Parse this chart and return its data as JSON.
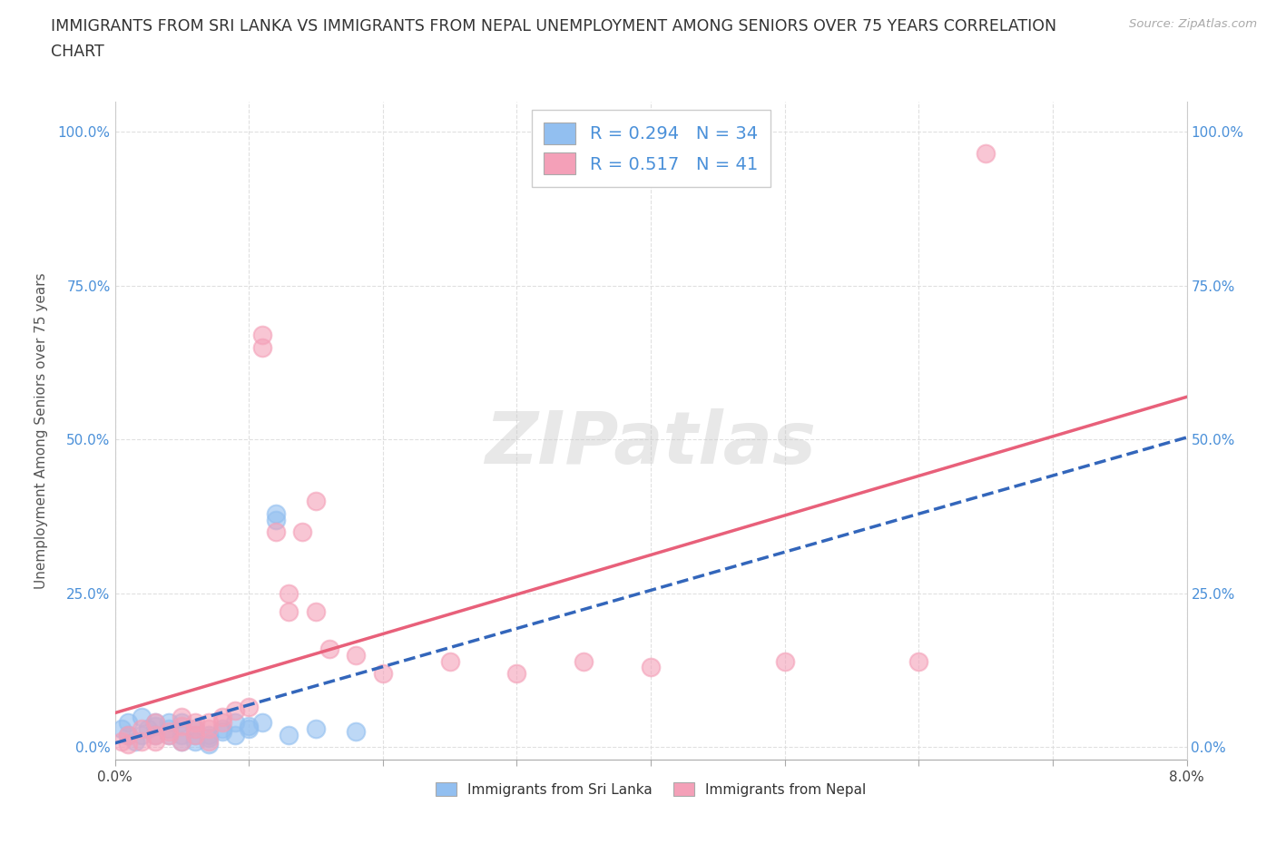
{
  "title_line1": "IMMIGRANTS FROM SRI LANKA VS IMMIGRANTS FROM NEPAL UNEMPLOYMENT AMONG SENIORS OVER 75 YEARS CORRELATION",
  "title_line2": "CHART",
  "source": "Source: ZipAtlas.com",
  "ylabel": "Unemployment Among Seniors over 75 years",
  "xlim": [
    0.0,
    0.08
  ],
  "ylim": [
    -0.02,
    1.05
  ],
  "xticks": [
    0.0,
    0.01,
    0.02,
    0.03,
    0.04,
    0.05,
    0.06,
    0.07,
    0.08
  ],
  "xtick_labels": [
    "0.0%",
    "",
    "",
    "",
    "",
    "",
    "",
    "",
    "8.0%"
  ],
  "yticks": [
    0.0,
    0.25,
    0.5,
    0.75,
    1.0
  ],
  "ytick_labels": [
    "0.0%",
    "25.0%",
    "50.0%",
    "75.0%",
    "100.0%"
  ],
  "sri_lanka_color": "#92bff0",
  "nepal_color": "#f4a0b8",
  "sri_lanka_line_color": "#3366bb",
  "nepal_line_color": "#e8607a",
  "sri_lanka_R": 0.294,
  "sri_lanka_N": 34,
  "nepal_R": 0.517,
  "nepal_N": 41,
  "watermark": "ZIPatlas",
  "background_color": "#ffffff",
  "grid_color": "#dddddd",
  "sri_lanka_scatter_x": [
    0.0005,
    0.001,
    0.001,
    0.0015,
    0.002,
    0.002,
    0.0025,
    0.003,
    0.003,
    0.003,
    0.004,
    0.004,
    0.004,
    0.005,
    0.005,
    0.005,
    0.006,
    0.006,
    0.006,
    0.007,
    0.007,
    0.007,
    0.008,
    0.008,
    0.009,
    0.009,
    0.01,
    0.01,
    0.011,
    0.012,
    0.012,
    0.013,
    0.015,
    0.018
  ],
  "sri_lanka_scatter_y": [
    0.03,
    0.02,
    0.04,
    0.01,
    0.02,
    0.05,
    0.03,
    0.04,
    0.02,
    0.035,
    0.04,
    0.03,
    0.02,
    0.02,
    0.01,
    0.04,
    0.03,
    0.02,
    0.01,
    0.015,
    0.02,
    0.005,
    0.03,
    0.025,
    0.04,
    0.02,
    0.035,
    0.03,
    0.04,
    0.38,
    0.37,
    0.02,
    0.03,
    0.025
  ],
  "nepal_scatter_x": [
    0.0005,
    0.001,
    0.001,
    0.002,
    0.002,
    0.003,
    0.003,
    0.003,
    0.004,
    0.004,
    0.005,
    0.005,
    0.005,
    0.006,
    0.006,
    0.006,
    0.007,
    0.007,
    0.007,
    0.008,
    0.008,
    0.009,
    0.01,
    0.011,
    0.011,
    0.012,
    0.013,
    0.013,
    0.014,
    0.015,
    0.015,
    0.016,
    0.018,
    0.02,
    0.025,
    0.03,
    0.035,
    0.04,
    0.05,
    0.06,
    0.065
  ],
  "nepal_scatter_y": [
    0.01,
    0.02,
    0.005,
    0.03,
    0.01,
    0.04,
    0.01,
    0.02,
    0.02,
    0.025,
    0.05,
    0.035,
    0.01,
    0.04,
    0.02,
    0.03,
    0.04,
    0.03,
    0.01,
    0.05,
    0.04,
    0.06,
    0.065,
    0.65,
    0.67,
    0.35,
    0.22,
    0.25,
    0.35,
    0.22,
    0.4,
    0.16,
    0.15,
    0.12,
    0.14,
    0.12,
    0.14,
    0.13,
    0.14,
    0.14,
    0.965
  ]
}
